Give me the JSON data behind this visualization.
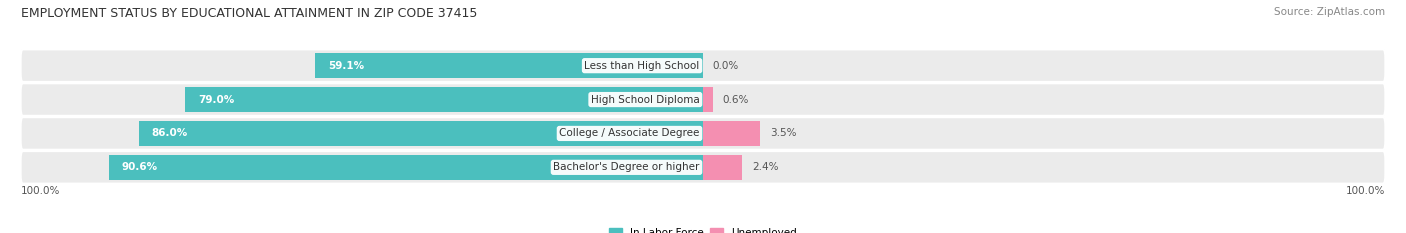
{
  "title": "EMPLOYMENT STATUS BY EDUCATIONAL ATTAINMENT IN ZIP CODE 37415",
  "source": "Source: ZipAtlas.com",
  "categories": [
    "Less than High School",
    "High School Diploma",
    "College / Associate Degree",
    "Bachelor's Degree or higher"
  ],
  "in_labor_force": [
    59.1,
    79.0,
    86.0,
    90.6
  ],
  "unemployed": [
    0.0,
    0.6,
    3.5,
    2.4
  ],
  "labor_force_color": "#4BBFBE",
  "unemployed_color": "#F48FB1",
  "row_bg_color": "#EBEBEB",
  "fig_width": 14.06,
  "fig_height": 2.33,
  "title_fontsize": 9,
  "source_fontsize": 7.5,
  "bar_label_fontsize": 7.5,
  "category_fontsize": 7.5,
  "legend_fontsize": 7.5,
  "axis_tick_fontsize": 7.5,
  "axis_label_left": "100.0%",
  "axis_label_right": "100.0%",
  "total_width": 100.0,
  "unemployed_scale": 20.0
}
